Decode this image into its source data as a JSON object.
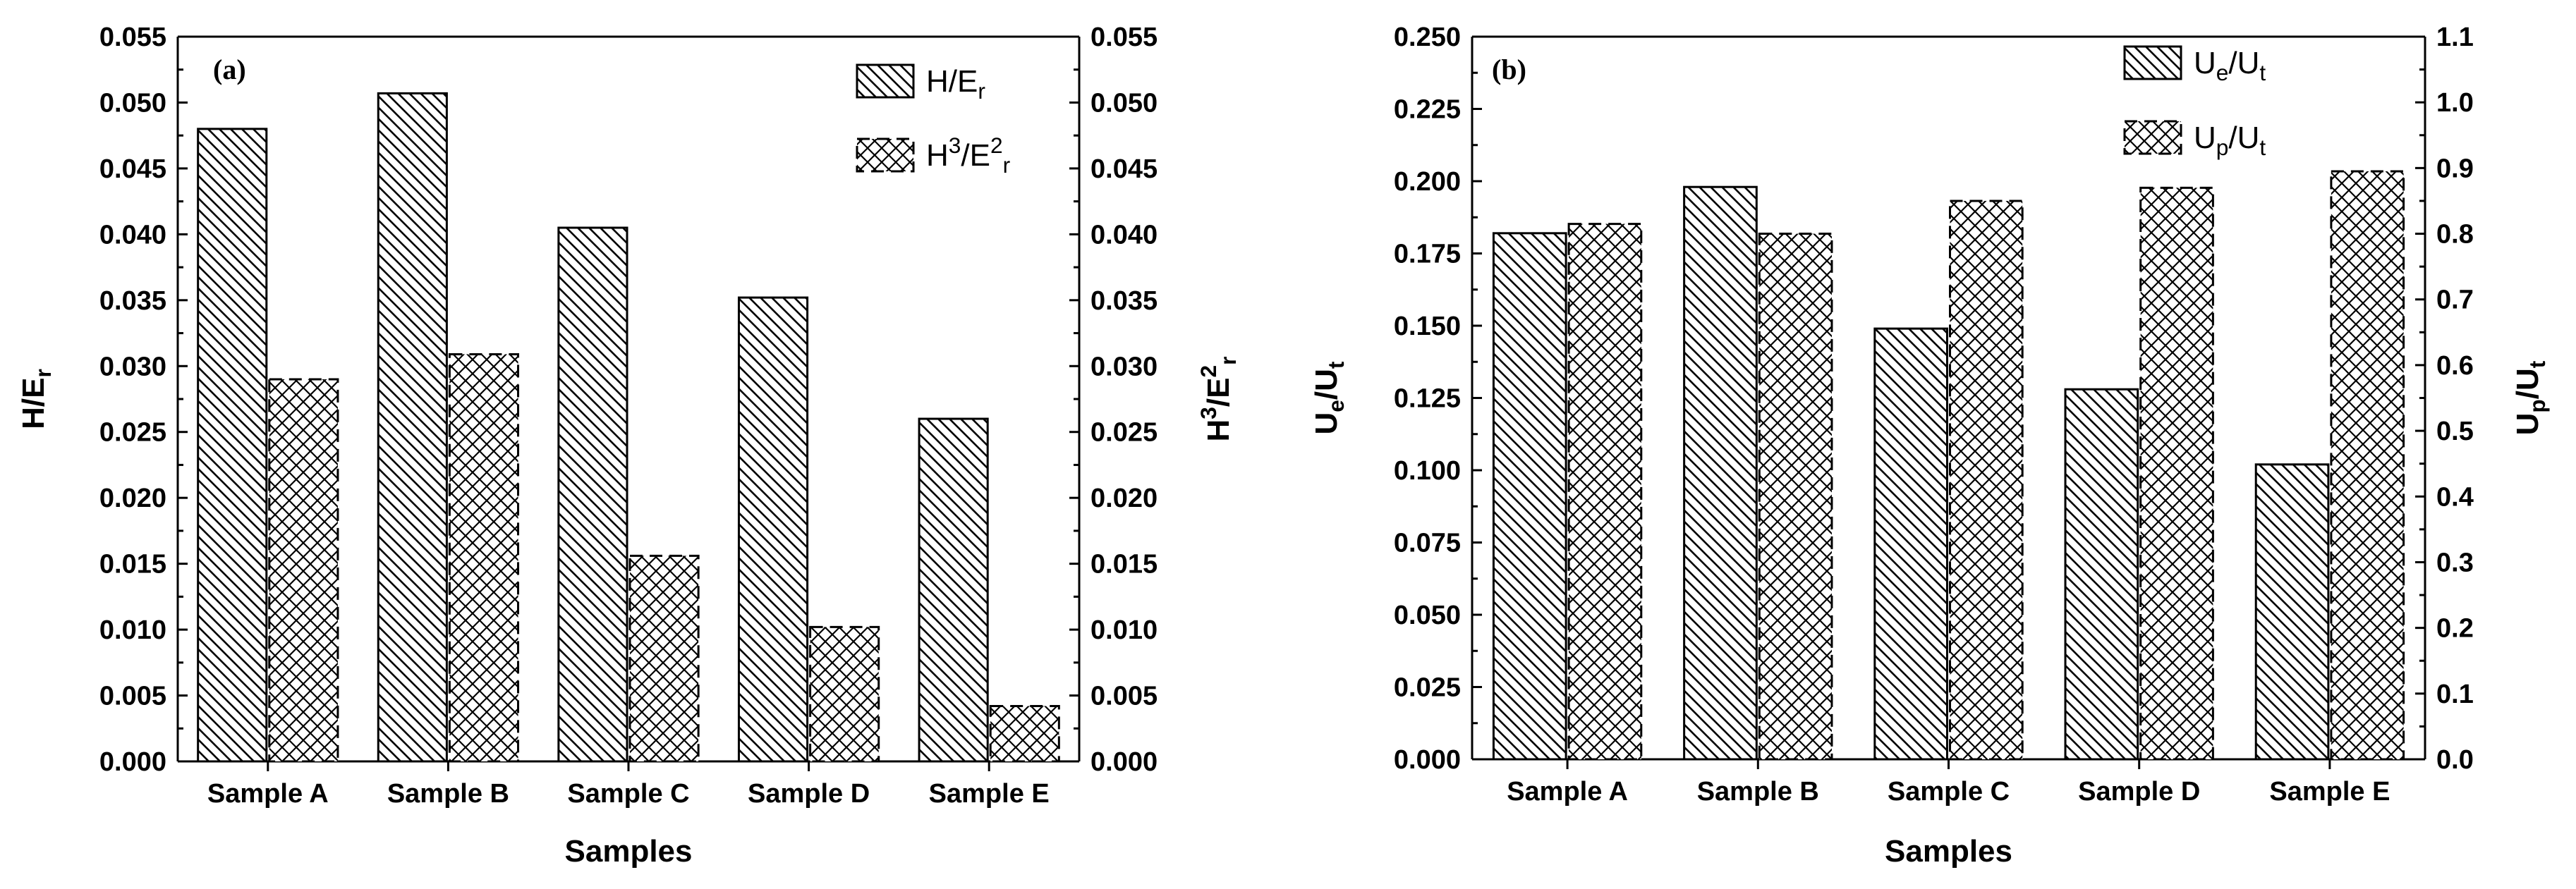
{
  "chart_data": [
    {
      "type": "bar",
      "panel": "(a)",
      "categories": [
        "Sample A",
        "Sample B",
        "Sample C",
        "Sample D",
        "Sample E"
      ],
      "xlabel": "Samples",
      "left_axis": {
        "label": "H/E",
        "label_sub": "r",
        "range": [
          0,
          0.055
        ],
        "ticks": [
          "0.000",
          "0.005",
          "0.010",
          "0.015",
          "0.020",
          "0.025",
          "0.030",
          "0.035",
          "0.040",
          "0.045",
          "0.050",
          "0.055"
        ]
      },
      "right_axis": {
        "label": "H",
        "label_sup": "3",
        "label_mid": "/E",
        "label_sup2": "2",
        "label_sub": "r",
        "range": [
          0,
          0.055
        ],
        "ticks": [
          "0.000",
          "0.005",
          "0.010",
          "0.015",
          "0.020",
          "0.025",
          "0.030",
          "0.035",
          "0.040",
          "0.045",
          "0.050",
          "0.055"
        ]
      },
      "series": [
        {
          "name": "H/E_r",
          "axis": "left",
          "pattern": "diag",
          "dashed": false,
          "legend": {
            "main": "H/E",
            "sub": "r"
          },
          "values": [
            0.048,
            0.0507,
            0.0405,
            0.0352,
            0.026
          ]
        },
        {
          "name": "H^3/E_r^2",
          "axis": "right",
          "pattern": "cross",
          "dashed": true,
          "legend": {
            "main": "H",
            "sup": "3",
            "mid": "/E",
            "sup2": "2",
            "sub": "r"
          },
          "values": [
            0.029,
            0.0309,
            0.0156,
            0.0102,
            0.0042
          ]
        }
      ]
    },
    {
      "type": "bar",
      "panel": "(b)",
      "categories": [
        "Sample A",
        "Sample B",
        "Sample C",
        "Sample D",
        "Sample E"
      ],
      "xlabel": "Samples",
      "left_axis": {
        "label": "U",
        "label_sub": "e",
        "label_mid": "/U",
        "label_sub2": "t",
        "range": [
          0,
          0.25
        ],
        "ticks": [
          "0.000",
          "0.025",
          "0.050",
          "0.075",
          "0.100",
          "0.125",
          "0.150",
          "0.175",
          "0.200",
          "0.225",
          "0.250"
        ]
      },
      "right_axis": {
        "label": "U",
        "label_sub": "p",
        "label_mid": "/U",
        "label_sub2": "t",
        "range": [
          0,
          1.1
        ],
        "ticks": [
          "0.0",
          "0.1",
          "0.2",
          "0.3",
          "0.4",
          "0.5",
          "0.6",
          "0.7",
          "0.8",
          "0.9",
          "1.0",
          "1.1"
        ]
      },
      "series": [
        {
          "name": "U_e/U_t",
          "axis": "left",
          "pattern": "diag",
          "dashed": false,
          "legend": {
            "main": "U",
            "sub": "e",
            "mid": "/U",
            "sub2": "t"
          },
          "values": [
            0.182,
            0.198,
            0.149,
            0.128,
            0.102
          ]
        },
        {
          "name": "U_p/U_t",
          "axis": "right",
          "pattern": "cross",
          "dashed": true,
          "legend": {
            "main": "U",
            "sub": "p",
            "mid": "/U",
            "sub2": "t"
          },
          "values": [
            0.815,
            0.8,
            0.85,
            0.87,
            0.895
          ]
        }
      ]
    }
  ]
}
